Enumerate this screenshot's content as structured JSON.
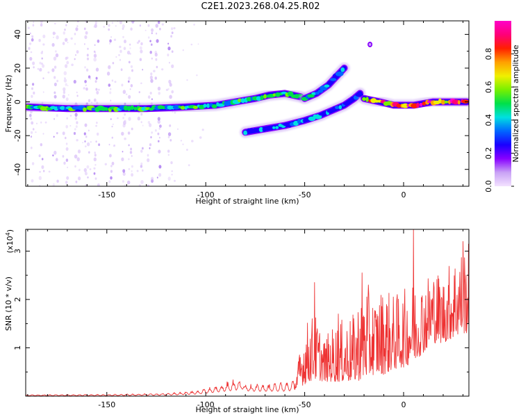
{
  "figure_title": "C2E1.2023.268.04.25.R02",
  "chart_data": [
    {
      "type": "heatmap",
      "title": "",
      "xlabel": "Height of straight line (km)",
      "ylabel": "Frequency (Hz)",
      "xlim": [
        -191,
        33
      ],
      "ylim": [
        -50,
        48
      ],
      "xticks": [
        -150,
        -100,
        -50,
        0
      ],
      "yticks": [
        -40,
        -20,
        0,
        20,
        40
      ],
      "colorbar": {
        "label": "Normalized spectral amplitude",
        "range": [
          0,
          1
        ],
        "ticks": [
          "0.0",
          "0.2",
          "0.4",
          "0.6",
          "0.8"
        ],
        "colormap": [
          "#f3e2ff",
          "#c9a2f5",
          "#8800ff",
          "#1a00ff",
          "#0066ff",
          "#00e0e0",
          "#00e04a",
          "#78f000",
          "#f0f000",
          "#ffa000",
          "#ff2000",
          "#ff0078",
          "#ff00c8"
        ]
      },
      "bands": [
        {
          "name": "main",
          "points": [
            [
              -190,
              -3
            ],
            [
              -170,
              -4
            ],
            [
              -150,
              -4
            ],
            [
              -130,
              -4
            ],
            [
              -110,
              -3
            ],
            [
              -95,
              -2
            ],
            [
              -85,
              0
            ],
            [
              -75,
              2
            ],
            [
              -68,
              4
            ],
            [
              -60,
              5
            ],
            [
              -52,
              3
            ]
          ],
          "level": 0.55
        },
        {
          "name": "upper-branch",
          "points": [
            [
              -50,
              2
            ],
            [
              -44,
              5
            ],
            [
              -38,
              10
            ],
            [
              -34,
              15
            ],
            [
              -30,
              20
            ]
          ],
          "level": 0.45
        },
        {
          "name": "lower-branch",
          "points": [
            [
              -80,
              -18
            ],
            [
              -70,
              -16
            ],
            [
              -60,
              -14
            ],
            [
              -50,
              -11
            ],
            [
              -42,
              -8
            ],
            [
              -36,
              -5
            ],
            [
              -30,
              -2
            ],
            [
              -25,
              2
            ],
            [
              -22,
              5
            ]
          ],
          "level": 0.4
        },
        {
          "name": "right-band",
          "points": [
            [
              -20,
              2
            ],
            [
              -12,
              0
            ],
            [
              -5,
              -2
            ],
            [
              5,
              -2
            ],
            [
              15,
              0
            ],
            [
              25,
              0
            ],
            [
              32,
              0
            ]
          ],
          "level": 0.95
        }
      ],
      "isolated_points": [
        [
          -17,
          34
        ]
      ]
    },
    {
      "type": "line",
      "title": "",
      "xlabel": "Height of straight line (km)",
      "ylabel": "SNR (10 * v/v)",
      "yscale_label": "(x10",
      "yscale_exp": "4",
      "yscale_close": ")",
      "xlim": [
        -191,
        33
      ],
      "ylim": [
        0,
        3.45
      ],
      "xticks": [
        -150,
        -100,
        -50,
        0
      ],
      "yticks": [
        1,
        2,
        3
      ],
      "series": [
        {
          "color": "#ee3333",
          "envelope": {
            "x": [
              -191,
              -150,
              -120,
              -105,
              -95,
              -90,
              -85,
              -82,
              -78,
              -70,
              -60,
              -55,
              -50,
              -45,
              -40,
              -35,
              -30,
              -25,
              -20,
              -15,
              -10,
              -5,
              0,
              5,
              10,
              15,
              20,
              25,
              30,
              33
            ],
            "base": [
              0.01,
              0.01,
              0.02,
              0.04,
              0.08,
              0.1,
              0.12,
              0.15,
              0.1,
              0.1,
              0.1,
              0.12,
              0.25,
              0.35,
              0.3,
              0.3,
              0.3,
              0.3,
              0.35,
              0.45,
              0.45,
              0.55,
              0.6,
              0.7,
              0.9,
              1.1,
              1.1,
              1.2,
              1.3,
              1.3
            ],
            "peak": [
              0.03,
              0.04,
              0.06,
              0.12,
              0.22,
              0.3,
              0.38,
              0.3,
              0.25,
              0.25,
              0.3,
              0.35,
              1.5,
              1.75,
              1.2,
              1.5,
              1.6,
              1.7,
              2.5,
              2.05,
              2.3,
              2.1,
              2.2,
              2.4,
              2.45,
              2.7,
              2.5,
              2.95,
              3.1,
              3.2
            ]
          },
          "peaks": [
            [
              5,
              3.45
            ],
            [
              -45,
              2.35
            ],
            [
              -21,
              2.55
            ],
            [
              -33,
              1.7
            ],
            [
              30,
              3.2
            ]
          ]
        }
      ]
    }
  ]
}
